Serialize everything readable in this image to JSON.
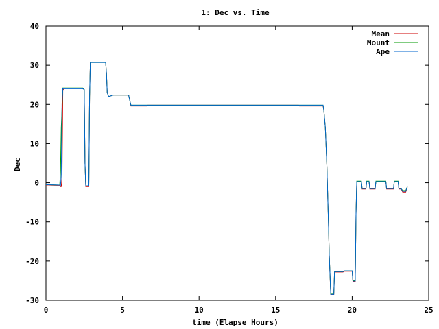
{
  "chart_data": {
    "type": "line",
    "title": "1: Dec vs. Time",
    "xlabel": "time (Elapse Hours)",
    "ylabel": "Dec",
    "xlim": [
      0,
      25
    ],
    "ylim": [
      -30,
      40
    ],
    "xticks": [
      0,
      5,
      10,
      15,
      20,
      25
    ],
    "yticks": [
      -30,
      -20,
      -10,
      0,
      10,
      20,
      30,
      40
    ],
    "grid": false,
    "legend_position": "top-right",
    "series": [
      {
        "name": "Mean",
        "color": "#cc0000",
        "points": [
          [
            0.0,
            -0.8
          ],
          [
            0.9,
            -0.8
          ],
          [
            0.95,
            -1.0
          ],
          [
            1.0,
            -1.0
          ],
          [
            1.05,
            1.0
          ],
          [
            1.1,
            23.5
          ],
          [
            1.2,
            24.1
          ],
          [
            2.4,
            24.1
          ],
          [
            2.5,
            23.8
          ],
          [
            2.55,
            5.0
          ],
          [
            2.6,
            -1.0
          ],
          [
            2.8,
            -1.0
          ],
          [
            2.85,
            22.0
          ],
          [
            2.9,
            30.8
          ],
          [
            3.9,
            30.8
          ],
          [
            3.95,
            28.0
          ],
          [
            4.0,
            23.0
          ],
          [
            4.1,
            22.0
          ],
          [
            4.4,
            22.4
          ],
          [
            5.4,
            22.4
          ],
          [
            5.5,
            20.5
          ],
          [
            5.55,
            19.6
          ],
          [
            6.6,
            19.6
          ],
          [
            6.65,
            19.8
          ],
          [
            16.5,
            19.8
          ],
          [
            16.55,
            19.6
          ],
          [
            18.1,
            19.6
          ],
          [
            18.15,
            18.5
          ],
          [
            18.25,
            14.0
          ],
          [
            18.35,
            4.0
          ],
          [
            18.45,
            -10.0
          ],
          [
            18.5,
            -18.0
          ],
          [
            18.6,
            -28.6
          ],
          [
            18.8,
            -28.6
          ],
          [
            18.85,
            -22.8
          ],
          [
            19.4,
            -22.8
          ],
          [
            19.5,
            -22.6
          ],
          [
            20.0,
            -22.6
          ],
          [
            20.05,
            -25.2
          ],
          [
            20.2,
            -25.2
          ],
          [
            20.25,
            -8.0
          ],
          [
            20.3,
            0.3
          ],
          [
            20.6,
            0.3
          ],
          [
            20.65,
            -1.6
          ],
          [
            20.9,
            -1.6
          ],
          [
            20.95,
            0.3
          ],
          [
            21.1,
            0.3
          ],
          [
            21.15,
            -1.6
          ],
          [
            21.5,
            -1.6
          ],
          [
            21.55,
            0.3
          ],
          [
            22.2,
            0.3
          ],
          [
            22.25,
            -1.6
          ],
          [
            22.7,
            -1.6
          ],
          [
            22.75,
            0.3
          ],
          [
            23.0,
            0.3
          ],
          [
            23.05,
            -1.6
          ],
          [
            23.2,
            -1.6
          ],
          [
            23.3,
            -2.4
          ],
          [
            23.5,
            -2.4
          ],
          [
            23.6,
            -1.1
          ]
        ]
      },
      {
        "name": "Mount",
        "color": "#009900",
        "points": [
          [
            0.0,
            -0.5
          ],
          [
            0.9,
            -0.6
          ],
          [
            0.95,
            3.0
          ],
          [
            1.0,
            14.0
          ],
          [
            1.1,
            24.2
          ],
          [
            1.2,
            24.2
          ],
          [
            2.4,
            24.2
          ],
          [
            2.5,
            23.8
          ],
          [
            2.55,
            5.0
          ],
          [
            2.6,
            -0.8
          ],
          [
            2.8,
            -0.8
          ],
          [
            2.85,
            22.0
          ],
          [
            2.9,
            30.7
          ],
          [
            3.9,
            30.7
          ],
          [
            3.95,
            28.0
          ],
          [
            4.0,
            23.0
          ],
          [
            4.1,
            22.0
          ],
          [
            4.4,
            22.4
          ],
          [
            5.4,
            22.4
          ],
          [
            5.5,
            20.5
          ],
          [
            5.55,
            19.8
          ],
          [
            16.5,
            19.8
          ],
          [
            18.1,
            19.8
          ],
          [
            18.15,
            18.5
          ],
          [
            18.25,
            14.0
          ],
          [
            18.35,
            4.0
          ],
          [
            18.45,
            -10.0
          ],
          [
            18.5,
            -18.0
          ],
          [
            18.6,
            -28.4
          ],
          [
            18.8,
            -28.4
          ],
          [
            18.85,
            -22.7
          ],
          [
            19.4,
            -22.7
          ],
          [
            19.5,
            -22.5
          ],
          [
            20.0,
            -22.5
          ],
          [
            20.05,
            -25.0
          ],
          [
            20.2,
            -25.0
          ],
          [
            20.25,
            -8.0
          ],
          [
            20.3,
            0.4
          ],
          [
            20.6,
            0.4
          ],
          [
            20.65,
            -1.5
          ],
          [
            20.9,
            -1.5
          ],
          [
            20.95,
            0.4
          ],
          [
            21.1,
            0.4
          ],
          [
            21.15,
            -1.5
          ],
          [
            21.5,
            -1.5
          ],
          [
            21.55,
            0.4
          ],
          [
            22.2,
            0.4
          ],
          [
            22.25,
            -1.5
          ],
          [
            22.7,
            -1.5
          ],
          [
            22.75,
            0.4
          ],
          [
            23.0,
            0.4
          ],
          [
            23.05,
            -1.5
          ],
          [
            23.2,
            -1.5
          ],
          [
            23.3,
            -2.0
          ],
          [
            23.5,
            -2.0
          ],
          [
            23.6,
            -1.0
          ]
        ]
      },
      {
        "name": "Ape",
        "color": "#0066cc",
        "points": [
          [
            0.0,
            -0.5
          ],
          [
            0.9,
            -0.6
          ],
          [
            0.95,
            -0.8
          ],
          [
            1.0,
            2.0
          ],
          [
            1.05,
            20.0
          ],
          [
            1.1,
            24.0
          ],
          [
            1.3,
            24.0
          ],
          [
            2.4,
            24.0
          ],
          [
            2.5,
            23.8
          ],
          [
            2.55,
            5.0
          ],
          [
            2.6,
            -0.8
          ],
          [
            2.8,
            -0.8
          ],
          [
            2.85,
            22.0
          ],
          [
            2.9,
            30.7
          ],
          [
            3.9,
            30.7
          ],
          [
            3.95,
            28.0
          ],
          [
            4.0,
            23.0
          ],
          [
            4.1,
            22.0
          ],
          [
            4.4,
            22.4
          ],
          [
            5.4,
            22.4
          ],
          [
            5.5,
            20.5
          ],
          [
            5.55,
            19.8
          ],
          [
            16.5,
            19.8
          ],
          [
            18.1,
            19.8
          ],
          [
            18.15,
            18.5
          ],
          [
            18.25,
            14.0
          ],
          [
            18.35,
            4.0
          ],
          [
            18.45,
            -10.0
          ],
          [
            18.5,
            -18.0
          ],
          [
            18.6,
            -28.5
          ],
          [
            18.8,
            -28.5
          ],
          [
            18.85,
            -22.7
          ],
          [
            19.4,
            -22.7
          ],
          [
            19.5,
            -22.5
          ],
          [
            20.0,
            -22.5
          ],
          [
            20.05,
            -25.1
          ],
          [
            20.2,
            -25.1
          ],
          [
            20.25,
            -8.0
          ],
          [
            20.3,
            0.3
          ],
          [
            20.6,
            0.3
          ],
          [
            20.65,
            -1.5
          ],
          [
            20.9,
            -1.5
          ],
          [
            20.95,
            0.3
          ],
          [
            21.1,
            0.3
          ],
          [
            21.15,
            -1.5
          ],
          [
            21.5,
            -1.5
          ],
          [
            21.55,
            0.3
          ],
          [
            22.2,
            0.3
          ],
          [
            22.25,
            -1.5
          ],
          [
            22.7,
            -1.5
          ],
          [
            22.75,
            0.3
          ],
          [
            23.0,
            0.3
          ],
          [
            23.05,
            -1.5
          ],
          [
            23.2,
            -1.5
          ],
          [
            23.3,
            -2.2
          ],
          [
            23.5,
            -2.2
          ],
          [
            23.6,
            -1.0
          ]
        ]
      }
    ]
  }
}
